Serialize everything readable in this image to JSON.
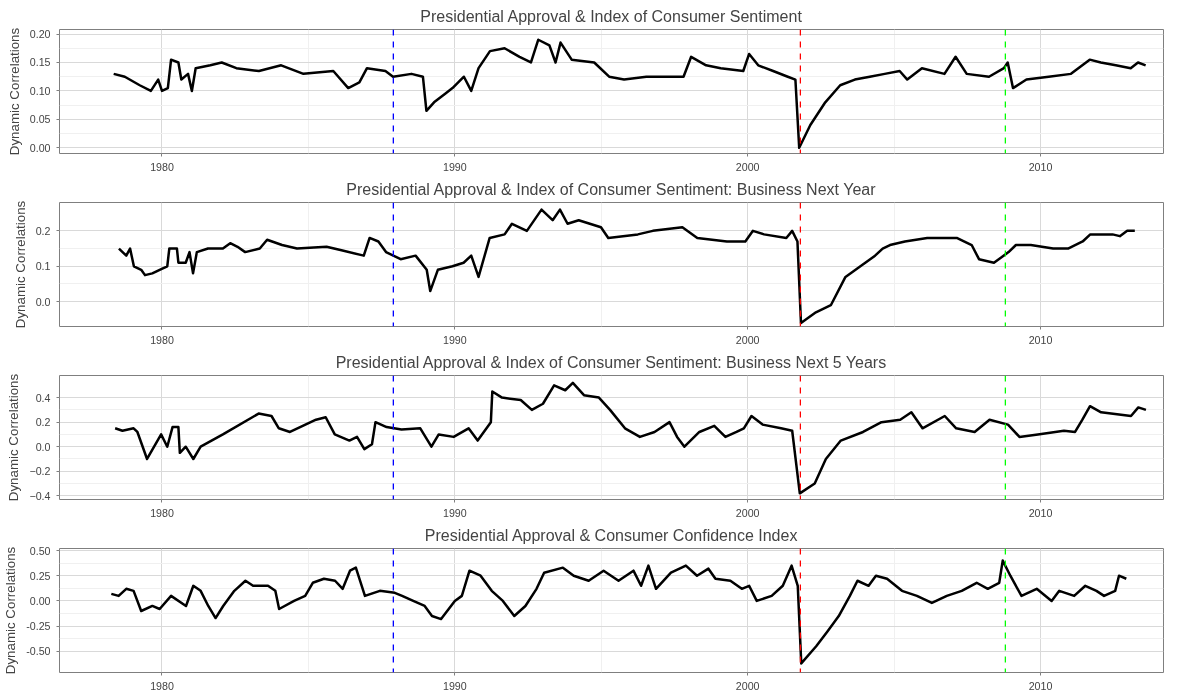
{
  "chart_data": [
    {
      "type": "line",
      "title": "Presidential Approval & Index of Consumer Sentiment",
      "ylabel": "Dynamic Correlations",
      "xlim": [
        1976.5,
        2014.2
      ],
      "ylim": [
        -0.01,
        0.208
      ],
      "xticks": [
        1980,
        1990,
        2000,
        2010
      ],
      "yticks": [
        {
          "value": 0,
          "label": "0.00"
        },
        {
          "value": 0.05,
          "label": "0.05"
        },
        {
          "value": 0.1,
          "label": "0.10"
        },
        {
          "value": 0.15,
          "label": "0.15"
        },
        {
          "value": 0.2,
          "label": "0.20"
        }
      ],
      "grid": true,
      "line_style": "solid",
      "marker": "none",
      "ref_lines": [
        {
          "axis": "x",
          "value": 1987.9,
          "color": "#0000ff",
          "line_style": "dashed"
        },
        {
          "axis": "x",
          "value": 2001.8,
          "color": "#ff0000",
          "line_style": "dashed"
        },
        {
          "axis": "x",
          "value": 2008.8,
          "color": "#00ff00",
          "line_style": "dashed"
        }
      ],
      "series": [
        {
          "color": "#000000",
          "x": [
            1978.35,
            1978.73,
            1979.24,
            1979.62,
            1979.87,
            1980.0,
            1980.2,
            1980.31,
            1980.56,
            1980.66,
            1980.89,
            1981.02,
            1981.15,
            1981.65,
            1982.04,
            1982.54,
            1983.31,
            1984.07,
            1984.83,
            1985.85,
            1986.36,
            1986.74,
            1987.0,
            1987.63,
            1987.89,
            1988.52,
            1988.91,
            1989.03,
            1989.29,
            1989.67,
            1989.92,
            1990.31,
            1990.56,
            1990.81,
            1991.2,
            1991.7,
            1992.21,
            1992.6,
            1992.85,
            1993.23,
            1993.44,
            1993.61,
            1993.99,
            1994.76,
            1995.27,
            1995.78,
            1996.54,
            1997.3,
            1997.81,
            1998.07,
            1998.58,
            1999.08,
            1999.85,
            2000.05,
            2000.36,
            2000.87,
            2001.37,
            2001.63,
            2001.76,
            2002.14,
            2002.65,
            2003.16,
            2003.66,
            2004.17,
            2004.68,
            2005.19,
            2005.45,
            2005.95,
            2006.72,
            2007.1,
            2007.48,
            2008.24,
            2008.75,
            2008.88,
            2009.06,
            2009.52,
            2010.28,
            2011.04,
            2011.68,
            2012.06,
            2012.57,
            2013.08,
            2013.33,
            2013.59
          ],
          "values": [
            0.13,
            0.125,
            0.11,
            0.1,
            0.12,
            0.1,
            0.105,
            0.155,
            0.15,
            0.12,
            0.13,
            0.1,
            0.14,
            0.145,
            0.15,
            0.14,
            0.135,
            0.145,
            0.13,
            0.135,
            0.105,
            0.115,
            0.14,
            0.135,
            0.125,
            0.13,
            0.125,
            0.065,
            0.08,
            0.095,
            0.105,
            0.125,
            0.1,
            0.14,
            0.17,
            0.175,
            0.16,
            0.15,
            0.19,
            0.18,
            0.15,
            0.185,
            0.155,
            0.15,
            0.125,
            0.12,
            0.125,
            0.125,
            0.125,
            0.16,
            0.145,
            0.14,
            0.135,
            0.165,
            0.145,
            0.135,
            0.125,
            0.12,
            0.0,
            0.04,
            0.08,
            0.11,
            0.12,
            0.125,
            0.13,
            0.135,
            0.12,
            0.14,
            0.13,
            0.16,
            0.13,
            0.125,
            0.14,
            0.15,
            0.105,
            0.12,
            0.125,
            0.13,
            0.155,
            0.15,
            0.145,
            0.14,
            0.15,
            0.145
          ]
        }
      ]
    },
    {
      "type": "line",
      "title": "Presidential Approval & Index of Consumer Sentiment: Business Next Year",
      "ylabel": "Dynamic Correlations",
      "xlim": [
        1976.5,
        2014.2
      ],
      "ylim": [
        -0.07,
        0.28
      ],
      "xticks": [
        1980,
        1990,
        2000,
        2010
      ],
      "yticks": [
        {
          "value": 0,
          "label": "0.0"
        },
        {
          "value": 0.1,
          "label": "0.1"
        },
        {
          "value": 0.2,
          "label": "0.2"
        }
      ],
      "grid": true,
      "line_style": "solid",
      "marker": "none",
      "ref_lines": [
        {
          "axis": "x",
          "value": 1987.9,
          "color": "#0000ff",
          "line_style": "dashed"
        },
        {
          "axis": "x",
          "value": 2001.8,
          "color": "#ff0000",
          "line_style": "dashed"
        },
        {
          "axis": "x",
          "value": 2008.8,
          "color": "#00ff00",
          "line_style": "dashed"
        }
      ],
      "series": [
        {
          "color": "#000000",
          "x": [
            1978.53,
            1978.78,
            1978.91,
            1979.04,
            1979.29,
            1979.42,
            1979.67,
            1979.92,
            1980.18,
            1980.25,
            1980.51,
            1980.56,
            1980.81,
            1980.94,
            1981.06,
            1981.19,
            1981.57,
            1982.08,
            1982.33,
            1982.58,
            1982.84,
            1983.34,
            1983.59,
            1984.1,
            1984.61,
            1985.62,
            1986.13,
            1986.89,
            1987.09,
            1987.39,
            1987.65,
            1988.15,
            1988.66,
            1989.04,
            1989.16,
            1989.42,
            1989.92,
            1990.3,
            1990.56,
            1990.81,
            1991.19,
            1991.7,
            1991.95,
            1992.46,
            1992.96,
            1993.34,
            1993.59,
            1993.85,
            1994.23,
            1994.99,
            1995.24,
            1996.25,
            1996.76,
            1997.77,
            1998.28,
            1999.29,
            1999.92,
            2000.18,
            2000.56,
            2001.32,
            2001.52,
            2001.7,
            2001.82,
            2002.33,
            2002.84,
            2003.34,
            2003.85,
            2004.35,
            2004.61,
            2004.86,
            2005.37,
            2006.13,
            2007.14,
            2007.65,
            2007.9,
            2008.41,
            2008.91,
            2009.16,
            2009.67,
            2010.43,
            2010.94,
            2011.44,
            2011.7,
            2012.46,
            2012.71,
            2012.96,
            2013.22
          ],
          "values": [
            0.15,
            0.13,
            0.15,
            0.1,
            0.09,
            0.075,
            0.08,
            0.09,
            0.1,
            0.15,
            0.15,
            0.11,
            0.11,
            0.14,
            0.08,
            0.14,
            0.15,
            0.15,
            0.165,
            0.155,
            0.14,
            0.15,
            0.175,
            0.16,
            0.15,
            0.155,
            0.145,
            0.13,
            0.18,
            0.17,
            0.14,
            0.12,
            0.13,
            0.09,
            0.03,
            0.09,
            0.1,
            0.11,
            0.13,
            0.07,
            0.18,
            0.19,
            0.22,
            0.2,
            0.26,
            0.23,
            0.26,
            0.22,
            0.23,
            0.21,
            0.18,
            0.19,
            0.2,
            0.21,
            0.18,
            0.17,
            0.17,
            0.2,
            0.19,
            0.18,
            0.2,
            0.17,
            -0.06,
            -0.03,
            -0.01,
            0.07,
            0.1,
            0.13,
            0.15,
            0.16,
            0.17,
            0.18,
            0.18,
            0.16,
            0.12,
            0.11,
            0.14,
            0.16,
            0.16,
            0.15,
            0.15,
            0.17,
            0.19,
            0.19,
            0.185,
            0.2,
            0.2
          ]
        }
      ]
    },
    {
      "type": "line",
      "title": "Presidential Approval & Index of Consumer Sentiment: Business Next 5 Years",
      "ylabel": "Dynamic Correlations",
      "xlim": [
        1976.5,
        2014.2
      ],
      "ylim": [
        -0.43,
        0.58
      ],
      "xticks": [
        1980,
        1990,
        2000,
        2010
      ],
      "yticks": [
        -0.4,
        -0.2,
        {
          "value": 0,
          "label": "0.0"
        },
        0.2,
        0.4
      ],
      "grid": true,
      "line_style": "solid",
      "marker": "none",
      "ref_lines": [
        {
          "axis": "x",
          "value": 1987.9,
          "color": "#0000ff",
          "line_style": "dashed"
        },
        {
          "axis": "x",
          "value": 2001.8,
          "color": "#ff0000",
          "line_style": "dashed"
        },
        {
          "axis": "x",
          "value": 2008.8,
          "color": "#00ff00",
          "line_style": "dashed"
        }
      ],
      "series": [
        {
          "color": "#000000",
          "x": [
            1978.4,
            1978.65,
            1979.03,
            1979.16,
            1979.49,
            1979.97,
            1980.18,
            1980.36,
            1980.56,
            1980.61,
            1980.81,
            1981.07,
            1981.32,
            1982.08,
            1983.3,
            1983.74,
            1983.99,
            1984.37,
            1985.26,
            1985.59,
            1985.9,
            1986.4,
            1986.66,
            1986.91,
            1987.17,
            1987.29,
            1987.67,
            1988.18,
            1988.82,
            1989.2,
            1989.45,
            1989.96,
            1990.47,
            1990.78,
            1991.23,
            1991.28,
            1991.61,
            1992.25,
            1992.63,
            1993.01,
            1993.39,
            1993.77,
            1994.03,
            1994.41,
            1994.92,
            1995.3,
            1995.81,
            1996.32,
            1996.82,
            1997.33,
            1997.59,
            1997.84,
            1998.35,
            1998.86,
            1999.24,
            1999.62,
            1999.87,
            2000.13,
            2000.51,
            2001.14,
            2001.52,
            2001.78,
            2002.29,
            2002.67,
            2003.18,
            2003.94,
            2004.57,
            2005.21,
            2005.59,
            2005.97,
            2006.73,
            2007.12,
            2007.75,
            2008.26,
            2008.89,
            2009.28,
            2009.91,
            2010.8,
            2011.18,
            2011.43,
            2011.69,
            2012.07,
            2013.09,
            2013.34,
            2013.6
          ],
          "values": [
            0.15,
            0.13,
            0.15,
            0.12,
            -0.1,
            0.1,
            0.0,
            0.16,
            0.16,
            -0.05,
            0.0,
            -0.1,
            0.0,
            0.1,
            0.27,
            0.25,
            0.15,
            0.12,
            0.22,
            0.24,
            0.1,
            0.05,
            0.08,
            -0.02,
            0.02,
            0.2,
            0.16,
            0.14,
            0.15,
            0.0,
            0.1,
            0.08,
            0.15,
            0.05,
            0.2,
            0.45,
            0.4,
            0.38,
            0.3,
            0.35,
            0.5,
            0.46,
            0.52,
            0.42,
            0.4,
            0.3,
            0.15,
            0.08,
            0.12,
            0.2,
            0.08,
            0.0,
            0.12,
            0.17,
            0.08,
            0.12,
            0.15,
            0.25,
            0.18,
            0.15,
            0.13,
            -0.38,
            -0.3,
            -0.1,
            0.05,
            0.12,
            0.2,
            0.22,
            0.28,
            0.15,
            0.25,
            0.15,
            0.12,
            0.22,
            0.18,
            0.08,
            0.1,
            0.13,
            0.12,
            0.22,
            0.33,
            0.28,
            0.25,
            0.32,
            0.3
          ]
        }
      ]
    },
    {
      "type": "line",
      "title": "Presidential Approval & Consumer Confidence Index",
      "ylabel": "Dynamic Correlations",
      "xlim": [
        1976.5,
        2014.2
      ],
      "ylim": [
        -0.71,
        0.52
      ],
      "xticks": [
        1980,
        1990,
        2000,
        2010
      ],
      "yticks": [
        {
          "value": -0.5,
          "label": "-0.50"
        },
        {
          "value": -0.25,
          "label": "-0.25"
        },
        {
          "value": 0,
          "label": "0.00"
        },
        {
          "value": 0.25,
          "label": "0.25"
        },
        {
          "value": 0.5,
          "label": "0.50"
        }
      ],
      "grid": true,
      "line_style": "solid",
      "marker": "none",
      "ref_lines": [
        {
          "axis": "x",
          "value": 1987.9,
          "color": "#0000ff",
          "line_style": "dashed"
        },
        {
          "axis": "x",
          "value": 2001.8,
          "color": "#ff0000",
          "line_style": "dashed"
        },
        {
          "axis": "x",
          "value": 2008.8,
          "color": "#00ff00",
          "line_style": "dashed"
        }
      ],
      "series": [
        {
          "color": "#000000",
          "x": [
            1978.27,
            1978.52,
            1978.78,
            1979.03,
            1979.29,
            1979.67,
            1979.92,
            1980.31,
            1980.82,
            1981.07,
            1981.32,
            1981.58,
            1981.83,
            1982.09,
            1982.47,
            1982.85,
            1983.11,
            1983.62,
            1983.87,
            1984.0,
            1984.51,
            1984.89,
            1985.15,
            1985.53,
            1985.91,
            1986.17,
            1986.42,
            1986.62,
            1986.93,
            1987.44,
            1987.95,
            1988.2,
            1988.58,
            1988.97,
            1989.22,
            1989.53,
            1990.0,
            1990.24,
            1990.5,
            1990.88,
            1991.26,
            1991.64,
            1992.03,
            1992.41,
            1992.79,
            1993.05,
            1993.69,
            1994.06,
            1994.57,
            1995.08,
            1995.59,
            1996.1,
            1996.36,
            1996.61,
            1996.87,
            1997.38,
            1997.89,
            1998.27,
            1998.66,
            1998.9,
            1999.41,
            1999.8,
            2000.05,
            2000.31,
            2000.82,
            2001.2,
            2001.5,
            2001.71,
            2001.83,
            2002.34,
            2002.73,
            2003.11,
            2003.49,
            2003.75,
            2004.13,
            2004.38,
            2004.76,
            2005.27,
            2005.78,
            2006.29,
            2006.8,
            2007.31,
            2007.82,
            2008.2,
            2008.59,
            2008.71,
            2008.97,
            2009.35,
            2009.87,
            2010.38,
            2010.64,
            2011.15,
            2011.53,
            2011.91,
            2012.17,
            2012.55,
            2012.68,
            2012.93
          ],
          "values": [
            0.07,
            0.05,
            0.12,
            0.1,
            -0.1,
            -0.05,
            -0.08,
            0.05,
            -0.05,
            0.15,
            0.1,
            -0.05,
            -0.17,
            -0.05,
            0.1,
            0.2,
            0.15,
            0.15,
            0.1,
            -0.08,
            0.0,
            0.05,
            0.18,
            0.22,
            0.2,
            0.12,
            0.3,
            0.33,
            0.05,
            0.1,
            0.08,
            0.05,
            0.0,
            -0.05,
            -0.15,
            -0.18,
            0.0,
            0.05,
            0.3,
            0.25,
            0.1,
            0.0,
            -0.15,
            -0.05,
            0.12,
            0.28,
            0.33,
            0.25,
            0.2,
            0.3,
            0.2,
            0.3,
            0.15,
            0.35,
            0.12,
            0.28,
            0.35,
            0.25,
            0.32,
            0.22,
            0.2,
            0.12,
            0.15,
            0.0,
            0.05,
            0.15,
            0.35,
            0.15,
            -0.62,
            -0.45,
            -0.3,
            -0.15,
            0.05,
            0.2,
            0.15,
            0.25,
            0.22,
            0.1,
            0.05,
            -0.02,
            0.05,
            0.1,
            0.18,
            0.12,
            0.18,
            0.4,
            0.25,
            0.05,
            0.12,
            0.0,
            0.1,
            0.05,
            0.15,
            0.1,
            0.05,
            0.1,
            0.25,
            0.22
          ]
        }
      ]
    }
  ]
}
